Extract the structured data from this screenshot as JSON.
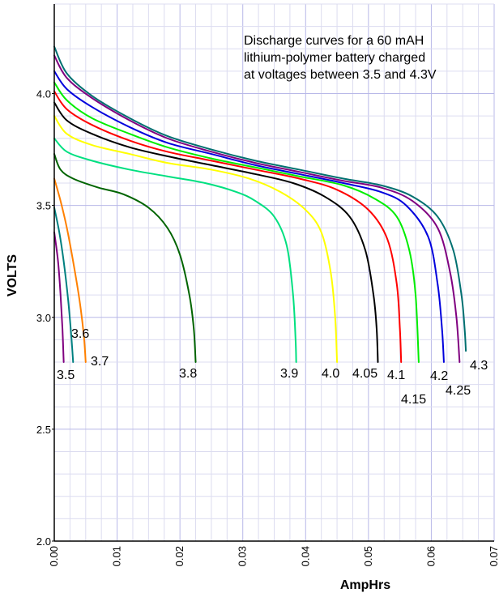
{
  "chart_data": {
    "type": "line",
    "title": "",
    "annotation": [
      "Discharge curves for a 60 mAH",
      "lithium-polymer battery charged",
      "at voltages between 3.5 and 4.3V"
    ],
    "xlabel": "AmpHrs",
    "ylabel": "VOLTS",
    "xlim": [
      0,
      0.07
    ],
    "ylim": [
      2.0,
      4.4
    ],
    "xticks": [
      "0.00",
      "0.01",
      "0.02",
      "0.03",
      "0.04",
      "0.05",
      "0.06",
      "0.07"
    ],
    "yticks": [
      "2.0",
      "2.5",
      "3.0",
      "3.5",
      "4.0"
    ],
    "grid": true,
    "series": [
      {
        "name": "3.5",
        "color": "#800080",
        "points": [
          [
            0,
            3.38
          ],
          [
            0.0006,
            3.25
          ],
          [
            0.001,
            3.1
          ],
          [
            0.0013,
            2.95
          ],
          [
            0.0015,
            2.8
          ]
        ]
      },
      {
        "name": "3.6",
        "color": "#008080",
        "points": [
          [
            0,
            3.49
          ],
          [
            0.0008,
            3.38
          ],
          [
            0.0015,
            3.25
          ],
          [
            0.0022,
            3.08
          ],
          [
            0.0027,
            2.92
          ],
          [
            0.003,
            2.8
          ]
        ]
      },
      {
        "name": "3.7",
        "color": "#ff8000",
        "points": [
          [
            0,
            3.62
          ],
          [
            0.001,
            3.52
          ],
          [
            0.002,
            3.4
          ],
          [
            0.003,
            3.25
          ],
          [
            0.004,
            3.08
          ],
          [
            0.0047,
            2.92
          ],
          [
            0.005,
            2.8
          ]
        ]
      },
      {
        "name": "3.8",
        "color": "#006400",
        "points": [
          [
            0,
            3.73
          ],
          [
            0.001,
            3.66
          ],
          [
            0.003,
            3.62
          ],
          [
            0.007,
            3.58
          ],
          [
            0.011,
            3.55
          ],
          [
            0.015,
            3.49
          ],
          [
            0.018,
            3.4
          ],
          [
            0.02,
            3.28
          ],
          [
            0.0215,
            3.1
          ],
          [
            0.0222,
            2.95
          ],
          [
            0.0225,
            2.8
          ]
        ]
      },
      {
        "name": "3.9",
        "color": "#00e080",
        "points": [
          [
            0,
            3.8
          ],
          [
            0.002,
            3.74
          ],
          [
            0.006,
            3.7
          ],
          [
            0.012,
            3.66
          ],
          [
            0.018,
            3.63
          ],
          [
            0.024,
            3.6
          ],
          [
            0.029,
            3.56
          ],
          [
            0.032,
            3.52
          ],
          [
            0.035,
            3.45
          ],
          [
            0.037,
            3.32
          ],
          [
            0.038,
            3.1
          ],
          [
            0.0384,
            2.9
          ],
          [
            0.0385,
            2.8
          ]
        ]
      },
      {
        "name": "4.0",
        "color": "#ffff00",
        "points": [
          [
            0,
            3.9
          ],
          [
            0.002,
            3.82
          ],
          [
            0.006,
            3.77
          ],
          [
            0.012,
            3.73
          ],
          [
            0.018,
            3.69
          ],
          [
            0.025,
            3.66
          ],
          [
            0.031,
            3.62
          ],
          [
            0.036,
            3.56
          ],
          [
            0.04,
            3.48
          ],
          [
            0.0425,
            3.38
          ],
          [
            0.044,
            3.2
          ],
          [
            0.0447,
            3.0
          ],
          [
            0.045,
            2.8
          ]
        ]
      },
      {
        "name": "4.05",
        "color": "#000000",
        "points": [
          [
            0,
            3.96
          ],
          [
            0.002,
            3.88
          ],
          [
            0.006,
            3.82
          ],
          [
            0.012,
            3.76
          ],
          [
            0.018,
            3.72
          ],
          [
            0.025,
            3.68
          ],
          [
            0.032,
            3.64
          ],
          [
            0.038,
            3.6
          ],
          [
            0.043,
            3.54
          ],
          [
            0.047,
            3.45
          ],
          [
            0.0495,
            3.3
          ],
          [
            0.0508,
            3.1
          ],
          [
            0.0513,
            2.95
          ],
          [
            0.0515,
            2.8
          ]
        ]
      },
      {
        "name": "4.1",
        "color": "#ff0000",
        "points": [
          [
            0,
            4.01
          ],
          [
            0.002,
            3.93
          ],
          [
            0.006,
            3.86
          ],
          [
            0.012,
            3.79
          ],
          [
            0.018,
            3.74
          ],
          [
            0.025,
            3.7
          ],
          [
            0.032,
            3.66
          ],
          [
            0.039,
            3.62
          ],
          [
            0.045,
            3.57
          ],
          [
            0.05,
            3.48
          ],
          [
            0.053,
            3.35
          ],
          [
            0.0545,
            3.15
          ],
          [
            0.055,
            2.95
          ],
          [
            0.0552,
            2.8
          ]
        ]
      },
      {
        "name": "4.15",
        "color": "#00ee00",
        "points": [
          [
            0,
            4.05
          ],
          [
            0.002,
            3.97
          ],
          [
            0.006,
            3.89
          ],
          [
            0.012,
            3.82
          ],
          [
            0.018,
            3.76
          ],
          [
            0.025,
            3.71
          ],
          [
            0.032,
            3.67
          ],
          [
            0.039,
            3.63
          ],
          [
            0.046,
            3.59
          ],
          [
            0.051,
            3.53
          ],
          [
            0.0545,
            3.45
          ],
          [
            0.0565,
            3.3
          ],
          [
            0.0575,
            3.1
          ],
          [
            0.058,
            2.8
          ]
        ]
      },
      {
        "name": "4.2",
        "color": "#0000dd",
        "points": [
          [
            0,
            4.1
          ],
          [
            0.002,
            4.02
          ],
          [
            0.006,
            3.94
          ],
          [
            0.012,
            3.85
          ],
          [
            0.018,
            3.78
          ],
          [
            0.025,
            3.73
          ],
          [
            0.032,
            3.68
          ],
          [
            0.039,
            3.64
          ],
          [
            0.046,
            3.6
          ],
          [
            0.052,
            3.56
          ],
          [
            0.056,
            3.5
          ],
          [
            0.0595,
            3.36
          ],
          [
            0.061,
            3.15
          ],
          [
            0.0617,
            2.95
          ],
          [
            0.062,
            2.8
          ]
        ]
      },
      {
        "name": "4.25",
        "color": "#800080",
        "points": [
          [
            0,
            4.17
          ],
          [
            0.002,
            4.07
          ],
          [
            0.006,
            3.98
          ],
          [
            0.012,
            3.88
          ],
          [
            0.018,
            3.8
          ],
          [
            0.025,
            3.74
          ],
          [
            0.032,
            3.69
          ],
          [
            0.039,
            3.65
          ],
          [
            0.046,
            3.61
          ],
          [
            0.052,
            3.58
          ],
          [
            0.057,
            3.52
          ],
          [
            0.061,
            3.4
          ],
          [
            0.063,
            3.2
          ],
          [
            0.064,
            3.0
          ],
          [
            0.0645,
            2.8
          ]
        ]
      },
      {
        "name": "4.3",
        "color": "#007070",
        "points": [
          [
            0,
            4.21
          ],
          [
            0.002,
            4.09
          ],
          [
            0.006,
            3.99
          ],
          [
            0.012,
            3.89
          ],
          [
            0.018,
            3.81
          ],
          [
            0.025,
            3.75
          ],
          [
            0.032,
            3.7
          ],
          [
            0.039,
            3.66
          ],
          [
            0.046,
            3.62
          ],
          [
            0.052,
            3.59
          ],
          [
            0.057,
            3.54
          ],
          [
            0.061,
            3.45
          ],
          [
            0.0635,
            3.3
          ],
          [
            0.0648,
            3.1
          ],
          [
            0.0653,
            2.95
          ],
          [
            0.0655,
            2.85
          ]
        ]
      }
    ]
  }
}
